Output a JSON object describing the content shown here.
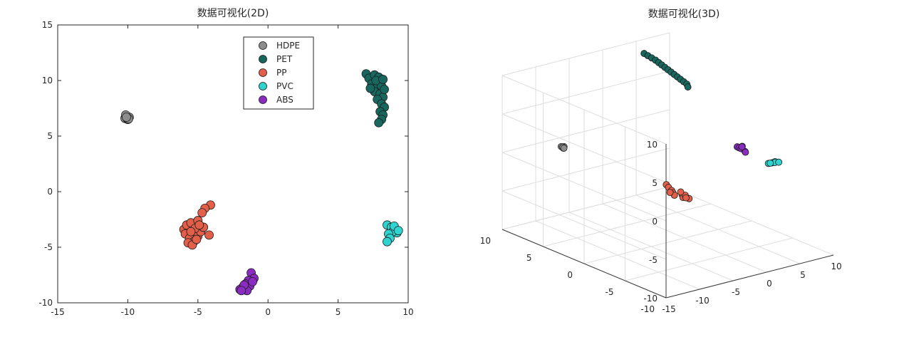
{
  "chart_data": [
    {
      "type": "scatter",
      "title": "数据可视化(2D)",
      "xlabel": "",
      "ylabel": "",
      "xlim": [
        -15,
        10
      ],
      "ylim": [
        -10,
        15
      ],
      "xticks": [
        -15,
        -10,
        -5,
        0,
        5,
        10
      ],
      "yticks": [
        -10,
        -5,
        0,
        5,
        10,
        15
      ],
      "grid": false,
      "legend": {
        "position": "top-center"
      },
      "series": [
        {
          "name": "HDPE",
          "color": "#8c8c8c",
          "points": [
            [
              -10.2,
              6.6
            ],
            [
              -10.1,
              6.8
            ],
            [
              -10.0,
              6.5
            ],
            [
              -9.9,
              6.7
            ],
            [
              -10.15,
              6.9
            ],
            [
              -10.05,
              6.6
            ],
            [
              -9.95,
              6.55
            ],
            [
              -10.1,
              6.7
            ]
          ]
        },
        {
          "name": "PET",
          "color": "#17675f",
          "points": [
            [
              7.0,
              10.6
            ],
            [
              7.2,
              10.2
            ],
            [
              7.6,
              10.5
            ],
            [
              7.9,
              10.3
            ],
            [
              8.0,
              9.9
            ],
            [
              7.4,
              9.7
            ],
            [
              7.8,
              9.4
            ],
            [
              8.1,
              9.5
            ],
            [
              7.6,
              9.0
            ],
            [
              8.0,
              8.8
            ],
            [
              8.2,
              8.5
            ],
            [
              7.8,
              8.3
            ],
            [
              8.1,
              7.9
            ],
            [
              8.3,
              7.6
            ],
            [
              8.0,
              7.2
            ],
            [
              8.2,
              6.9
            ],
            [
              8.1,
              6.5
            ],
            [
              7.9,
              6.2
            ],
            [
              7.7,
              10.0
            ],
            [
              8.2,
              10.1
            ],
            [
              7.3,
              9.3
            ],
            [
              8.3,
              9.2
            ]
          ]
        },
        {
          "name": "PP",
          "color": "#e35f4a",
          "points": [
            [
              -6.0,
              -3.4
            ],
            [
              -5.8,
              -3.0
            ],
            [
              -5.5,
              -2.8
            ],
            [
              -5.0,
              -2.6
            ],
            [
              -5.9,
              -3.8
            ],
            [
              -5.6,
              -4.2
            ],
            [
              -5.3,
              -4.5
            ],
            [
              -5.0,
              -4.0
            ],
            [
              -4.8,
              -3.6
            ],
            [
              -5.2,
              -3.3
            ],
            [
              -5.7,
              -4.6
            ],
            [
              -5.4,
              -4.8
            ],
            [
              -4.6,
              -3.2
            ],
            [
              -4.2,
              -3.9
            ],
            [
              -4.1,
              -1.2
            ],
            [
              -4.5,
              -1.5
            ],
            [
              -4.7,
              -1.9
            ],
            [
              -5.5,
              -3.6
            ],
            [
              -5.1,
              -4.3
            ],
            [
              -4.9,
              -3.0
            ]
          ]
        },
        {
          "name": "PVC",
          "color": "#2fd3d0",
          "points": [
            [
              8.5,
              -3.0
            ],
            [
              8.8,
              -3.2
            ],
            [
              9.1,
              -3.4
            ],
            [
              9.2,
              -3.7
            ],
            [
              8.9,
              -3.6
            ],
            [
              8.6,
              -3.8
            ],
            [
              8.7,
              -4.2
            ],
            [
              8.5,
              -4.5
            ],
            [
              9.0,
              -3.1
            ],
            [
              9.3,
              -3.5
            ]
          ]
        },
        {
          "name": "ABS",
          "color": "#8a2cc2",
          "points": [
            [
              -1.2,
              -7.3
            ],
            [
              -1.0,
              -7.8
            ],
            [
              -1.4,
              -8.0
            ],
            [
              -1.6,
              -8.3
            ],
            [
              -1.3,
              -8.5
            ],
            [
              -1.8,
              -8.6
            ],
            [
              -2.0,
              -8.8
            ],
            [
              -1.5,
              -8.9
            ],
            [
              -1.7,
              -8.4
            ],
            [
              -1.9,
              -8.9
            ],
            [
              -1.1,
              -8.1
            ]
          ]
        }
      ]
    },
    {
      "type": "scatter3d",
      "title": "数据可视化(3D)",
      "xlabel": "",
      "ylabel": "",
      "zlabel": "",
      "xticks": [
        -15,
        -10,
        -5,
        0,
        5,
        10
      ],
      "yticks": [
        -10,
        -5,
        0,
        5,
        10
      ],
      "zticks": [
        -10,
        -5,
        0,
        5,
        10
      ],
      "grid": true,
      "series": [
        {
          "name": "HDPE",
          "color": "#8c8c8c",
          "points": [
            [
              -10.0,
              6.6,
              1.0
            ],
            [
              -10.1,
              6.8,
              1.1
            ],
            [
              -9.9,
              6.7,
              0.9
            ],
            [
              -10.05,
              6.5,
              1.2
            ],
            [
              -10.0,
              6.7,
              1.05
            ],
            [
              -9.95,
              6.6,
              0.95
            ]
          ]
        },
        {
          "name": "PET",
          "color": "#17675f",
          "points": [
            [
              6.8,
              10.5,
              7.8
            ],
            [
              7.0,
              10.2,
              7.6
            ],
            [
              7.2,
              9.9,
              7.4
            ],
            [
              7.4,
              9.6,
              7.2
            ],
            [
              7.5,
              9.3,
              7.0
            ],
            [
              7.6,
              9.0,
              6.8
            ],
            [
              7.7,
              8.7,
              6.6
            ],
            [
              7.8,
              8.4,
              6.4
            ],
            [
              7.9,
              8.1,
              6.2
            ],
            [
              8.0,
              7.8,
              6.0
            ],
            [
              8.1,
              7.5,
              5.8
            ],
            [
              8.2,
              7.2,
              5.6
            ],
            [
              8.3,
              6.9,
              5.4
            ],
            [
              8.4,
              6.6,
              5.2
            ],
            [
              8.2,
              6.3,
              5.0
            ]
          ]
        },
        {
          "name": "PP",
          "color": "#e35f4a",
          "points": [
            [
              -4.2,
              -1.2,
              -1.6
            ],
            [
              -4.6,
              -1.8,
              -1.6
            ],
            [
              -5.0,
              -2.5,
              -1.6
            ],
            [
              -5.4,
              -3.0,
              -1.6
            ],
            [
              -5.0,
              -3.8,
              -1.6
            ],
            [
              -5.5,
              -4.3,
              -1.6
            ],
            [
              -5.8,
              -3.5,
              -1.6
            ],
            [
              -5.2,
              -4.8,
              -1.6
            ],
            [
              -4.8,
              -4.0,
              -1.6
            ],
            [
              -5.6,
              -2.8,
              -1.6
            ],
            [
              -4.5,
              -3.2,
              -1.6
            ],
            [
              -5.3,
              -4.5,
              -1.6
            ]
          ]
        },
        {
          "name": "PVC",
          "color": "#2fd3d0",
          "points": [
            [
              8.6,
              -3.2,
              -0.8
            ],
            [
              8.9,
              -3.4,
              -0.7
            ],
            [
              9.1,
              -3.6,
              -0.5
            ],
            [
              8.7,
              -3.9,
              -0.4
            ],
            [
              9.0,
              -3.1,
              -0.9
            ],
            [
              8.8,
              -4.3,
              -0.2
            ]
          ]
        },
        {
          "name": "ABS",
          "color": "#8a2cc2",
          "points": [
            [
              -1.2,
              -7.4,
              5.4
            ],
            [
              -1.4,
              -7.8,
              5.5
            ],
            [
              -1.6,
              -8.2,
              5.6
            ],
            [
              -1.5,
              -8.6,
              5.4
            ],
            [
              -1.8,
              -8.9,
              5.5
            ],
            [
              -1.3,
              -8.1,
              5.8
            ],
            [
              -1.7,
              -8.4,
              6.0
            ],
            [
              -1.1,
              -7.9,
              5.6
            ]
          ]
        }
      ]
    }
  ]
}
